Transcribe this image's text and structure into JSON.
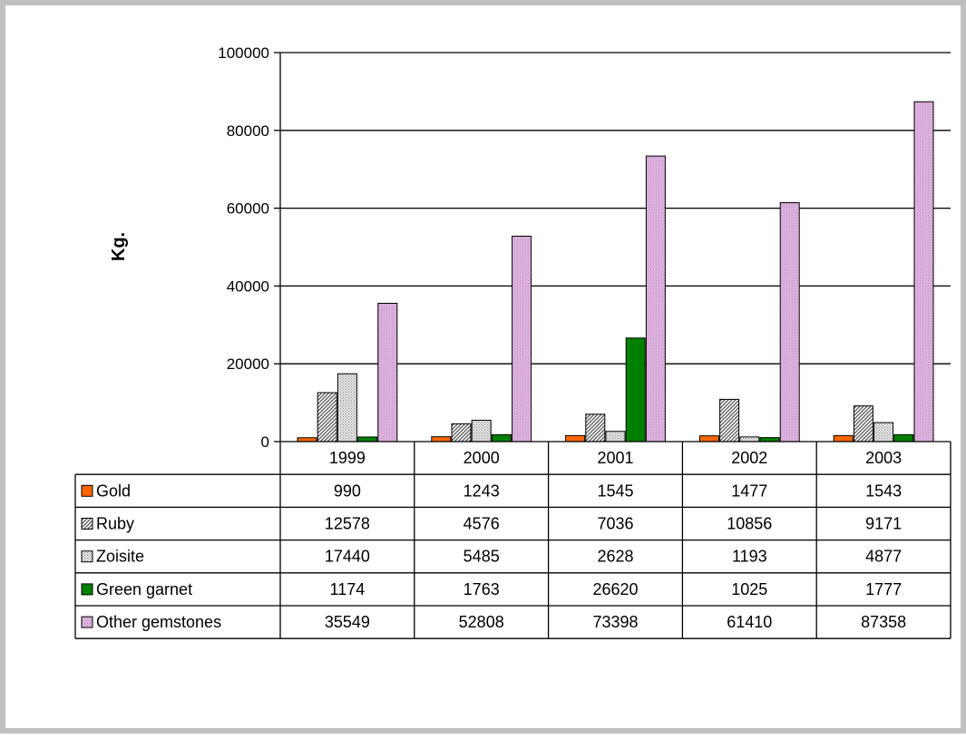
{
  "chart_data": {
    "type": "bar",
    "ylabel": "Kg.",
    "xlabel": "",
    "ylim": [
      0,
      100000
    ],
    "yticks": [
      0,
      20000,
      40000,
      60000,
      80000,
      100000
    ],
    "grid": true,
    "legend_placement": "table",
    "categories": [
      "1999",
      "2000",
      "2001",
      "2002",
      "2003"
    ],
    "series": [
      {
        "name": "Gold",
        "values": [
          990,
          1243,
          1545,
          1477,
          1543
        ],
        "color": "#ff6600",
        "pattern": "solid"
      },
      {
        "name": "Ruby",
        "values": [
          12578,
          4576,
          7036,
          10856,
          9171
        ],
        "color": "#b0b0b0",
        "pattern": "diagonal-hatch"
      },
      {
        "name": "Zoisite",
        "values": [
          17440,
          5485,
          2628,
          1193,
          4877
        ],
        "color": "#d8d8d8",
        "pattern": "fine-dots"
      },
      {
        "name": "Green garnet",
        "values": [
          1174,
          1763,
          26620,
          1025,
          1777
        ],
        "color": "#008000",
        "pattern": "solid"
      },
      {
        "name": "Other gemstones",
        "values": [
          35549,
          52808,
          73398,
          61410,
          87358
        ],
        "color": "#d9a8d9",
        "pattern": "fine-dots"
      }
    ]
  }
}
